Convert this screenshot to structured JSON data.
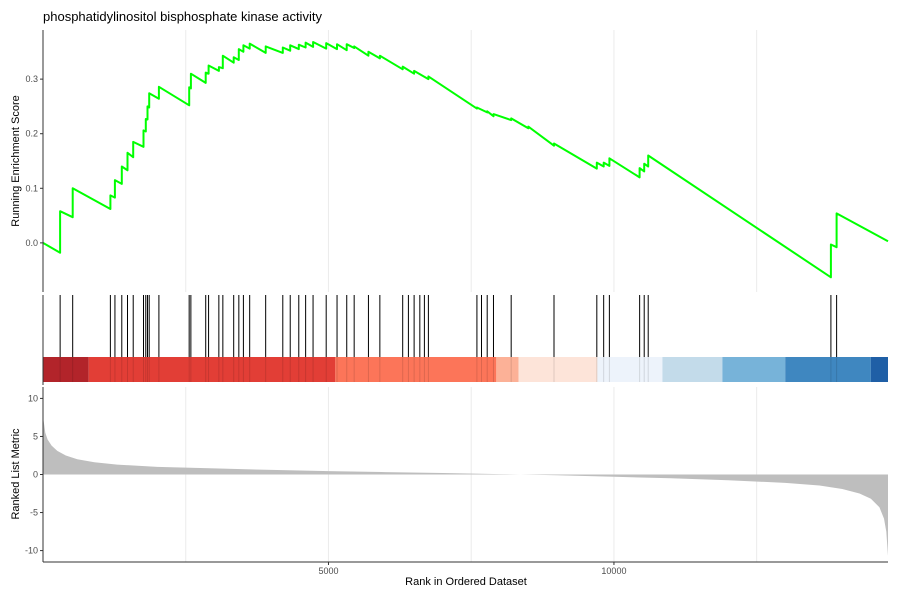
{
  "chart_data": {
    "type": "line",
    "title": "phosphatidylinositol bisphosphate kinase activity",
    "x_axis": {
      "label": "Rank in Ordered Dataset",
      "range": [
        0,
        14800
      ],
      "ticks": [
        5000,
        10000
      ],
      "tick_labels": [
        "5000",
        "10000"
      ],
      "grid_lines": [
        2500,
        5000,
        7500,
        10000,
        12500
      ]
    },
    "running_enrichment": {
      "ylabel": "Running Enrichment Score",
      "ylim": [
        -0.09,
        0.39
      ],
      "yticks": [
        0.0,
        0.1,
        0.2,
        0.3
      ],
      "ytick_labels": [
        "0.0",
        "0.1",
        "0.2",
        "0.3"
      ],
      "line_color": "#00ff00",
      "points": [
        [
          0,
          0.0
        ],
        [
          300,
          -0.018
        ],
        [
          300,
          0.058
        ],
        [
          520,
          0.047
        ],
        [
          520,
          0.1
        ],
        [
          1180,
          0.062
        ],
        [
          1180,
          0.087
        ],
        [
          1260,
          0.083
        ],
        [
          1260,
          0.115
        ],
        [
          1380,
          0.108
        ],
        [
          1380,
          0.14
        ],
        [
          1480,
          0.133
        ],
        [
          1480,
          0.165
        ],
        [
          1580,
          0.157
        ],
        [
          1580,
          0.185
        ],
        [
          1760,
          0.176
        ],
        [
          1760,
          0.206
        ],
        [
          1800,
          0.204
        ],
        [
          1800,
          0.227
        ],
        [
          1830,
          0.226
        ],
        [
          1830,
          0.25
        ],
        [
          1860,
          0.248
        ],
        [
          1860,
          0.274
        ],
        [
          2030,
          0.264
        ],
        [
          2030,
          0.286
        ],
        [
          2560,
          0.252
        ],
        [
          2560,
          0.285
        ],
        [
          2590,
          0.283
        ],
        [
          2590,
          0.31
        ],
        [
          2850,
          0.293
        ],
        [
          2850,
          0.312
        ],
        [
          2900,
          0.31
        ],
        [
          2900,
          0.325
        ],
        [
          3080,
          0.315
        ],
        [
          3080,
          0.322
        ],
        [
          3150,
          0.32
        ],
        [
          3150,
          0.343
        ],
        [
          3340,
          0.33
        ],
        [
          3340,
          0.34
        ],
        [
          3430,
          0.335
        ],
        [
          3430,
          0.355
        ],
        [
          3510,
          0.35
        ],
        [
          3510,
          0.362
        ],
        [
          3620,
          0.356
        ],
        [
          3620,
          0.365
        ],
        [
          3900,
          0.348
        ],
        [
          3900,
          0.36
        ],
        [
          4200,
          0.348
        ],
        [
          4200,
          0.358
        ],
        [
          4330,
          0.352
        ],
        [
          4330,
          0.362
        ],
        [
          4480,
          0.355
        ],
        [
          4480,
          0.363
        ],
        [
          4600,
          0.358
        ],
        [
          4600,
          0.367
        ],
        [
          4730,
          0.359
        ],
        [
          4730,
          0.368
        ],
        [
          4960,
          0.356
        ],
        [
          4960,
          0.366
        ],
        [
          5150,
          0.355
        ],
        [
          5150,
          0.364
        ],
        [
          5320,
          0.353
        ],
        [
          5320,
          0.364
        ],
        [
          5450,
          0.357
        ],
        [
          5450,
          0.36
        ],
        [
          5700,
          0.343
        ],
        [
          5700,
          0.35
        ],
        [
          5900,
          0.338
        ],
        [
          5900,
          0.343
        ],
        [
          6300,
          0.318
        ],
        [
          6300,
          0.323
        ],
        [
          6500,
          0.31
        ],
        [
          6500,
          0.315
        ],
        [
          6750,
          0.3
        ],
        [
          6750,
          0.305
        ],
        [
          7600,
          0.246
        ],
        [
          7600,
          0.248
        ],
        [
          7780,
          0.239
        ],
        [
          7780,
          0.241
        ],
        [
          7890,
          0.232
        ],
        [
          7890,
          0.236
        ],
        [
          8200,
          0.225
        ],
        [
          8200,
          0.228
        ],
        [
          8500,
          0.21
        ],
        [
          8500,
          0.213
        ],
        [
          8950,
          0.178
        ],
        [
          8950,
          0.182
        ],
        [
          9700,
          0.136
        ],
        [
          9700,
          0.147
        ],
        [
          9820,
          0.14
        ],
        [
          9820,
          0.147
        ],
        [
          9920,
          0.141
        ],
        [
          9920,
          0.155
        ],
        [
          10450,
          0.12
        ],
        [
          10450,
          0.137
        ],
        [
          10530,
          0.131
        ],
        [
          10530,
          0.145
        ],
        [
          10600,
          0.14
        ],
        [
          10600,
          0.16
        ],
        [
          13800,
          -0.063
        ],
        [
          13800,
          -0.003
        ],
        [
          13900,
          -0.008
        ],
        [
          13900,
          0.054
        ],
        [
          14800,
          0.003
        ]
      ]
    },
    "hits": [
      300,
      520,
      1180,
      1260,
      1380,
      1480,
      1580,
      1760,
      1800,
      1830,
      1860,
      2030,
      2560,
      2590,
      2850,
      2900,
      3080,
      3150,
      3340,
      3430,
      3510,
      3620,
      3900,
      4200,
      4330,
      4480,
      4600,
      4730,
      4960,
      5150,
      5320,
      5450,
      5700,
      5900,
      6300,
      6400,
      6500,
      6600,
      6680,
      6750,
      7600,
      7680,
      7780,
      7890,
      8200,
      8950,
      9700,
      9820,
      9920,
      10450,
      10530,
      10600,
      13800,
      13900
    ],
    "heat_bands": [
      {
        "from": 0,
        "to": 800,
        "color": "#b2242a"
      },
      {
        "from": 800,
        "to": 5120,
        "color": "#e23e36"
      },
      {
        "from": 5120,
        "to": 7940,
        "color": "#fc7559"
      },
      {
        "from": 7940,
        "to": 8330,
        "color": "#fcb197"
      },
      {
        "from": 8330,
        "to": 9710,
        "color": "#fde4d9"
      },
      {
        "from": 9710,
        "to": 10850,
        "color": "#edf3fb"
      },
      {
        "from": 10850,
        "to": 11900,
        "color": "#c3dbea"
      },
      {
        "from": 11900,
        "to": 13000,
        "color": "#77b3d9"
      },
      {
        "from": 13000,
        "to": 14500,
        "color": "#3f87c0"
      },
      {
        "from": 14500,
        "to": 14800,
        "color": "#1f5fa6"
      }
    ],
    "ranked_metric": {
      "ylabel": "Ranked List Metric",
      "ylim": [
        -11.5,
        11.5
      ],
      "yticks": [
        10,
        5,
        0,
        -5,
        -10
      ],
      "ytick_labels": [
        "10",
        "5",
        "0",
        "-5",
        "-10"
      ],
      "fill_color": "#bebebe",
      "profile": [
        [
          0,
          7.5
        ],
        [
          15,
          6.8
        ],
        [
          40,
          5.5
        ],
        [
          80,
          4.6
        ],
        [
          150,
          3.8
        ],
        [
          250,
          3.1
        ],
        [
          400,
          2.5
        ],
        [
          600,
          2.0
        ],
        [
          900,
          1.6
        ],
        [
          1300,
          1.3
        ],
        [
          2000,
          1.0
        ],
        [
          3000,
          0.8
        ],
        [
          4000,
          0.6
        ],
        [
          5000,
          0.45
        ],
        [
          6000,
          0.32
        ],
        [
          7000,
          0.2
        ],
        [
          8000,
          0.05
        ],
        [
          9000,
          -0.1
        ],
        [
          10000,
          -0.3
        ],
        [
          11000,
          -0.5
        ],
        [
          12000,
          -0.75
        ],
        [
          13000,
          -1.1
        ],
        [
          13600,
          -1.45
        ],
        [
          14000,
          -1.9
        ],
        [
          14300,
          -2.5
        ],
        [
          14500,
          -3.2
        ],
        [
          14650,
          -4.3
        ],
        [
          14730,
          -5.8
        ],
        [
          14770,
          -7.5
        ],
        [
          14800,
          -10.7
        ]
      ]
    }
  }
}
